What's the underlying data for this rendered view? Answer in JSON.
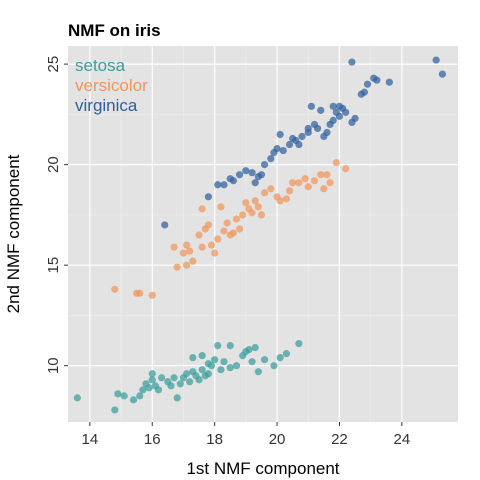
{
  "chart_data": {
    "type": "scatter",
    "title": "NMF on iris",
    "xlabel": "1st NMF component",
    "ylabel": "2nd NMF component",
    "xlim": [
      13.3,
      25.8
    ],
    "ylim": [
      7.2,
      25.9
    ],
    "xticks": [
      14,
      16,
      18,
      20,
      22,
      24
    ],
    "yticks": [
      10,
      15,
      20,
      25
    ],
    "grid": true,
    "legend_position": "top-left",
    "series": [
      {
        "name": "setosa",
        "color": "#3a9e9c",
        "points": [
          [
            13.6,
            8.4
          ],
          [
            14.8,
            7.8
          ],
          [
            14.9,
            8.6
          ],
          [
            15.1,
            8.5
          ],
          [
            15.4,
            8.3
          ],
          [
            15.6,
            8.5
          ],
          [
            15.7,
            8.8
          ],
          [
            15.8,
            9.1
          ],
          [
            15.9,
            8.9
          ],
          [
            16.0,
            9.3
          ],
          [
            16.1,
            9.0
          ],
          [
            16.2,
            8.8
          ],
          [
            16.3,
            9.4
          ],
          [
            16.0,
            9.6
          ],
          [
            16.5,
            9.2
          ],
          [
            16.6,
            9.0
          ],
          [
            16.8,
            8.4
          ],
          [
            16.9,
            9.1
          ],
          [
            17.0,
            9.4
          ],
          [
            17.1,
            9.6
          ],
          [
            17.2,
            9.2
          ],
          [
            17.3,
            9.7
          ],
          [
            17.4,
            9.5
          ],
          [
            17.5,
            9.3
          ],
          [
            17.6,
            9.8
          ],
          [
            17.7,
            9.5
          ],
          [
            17.8,
            9.6
          ],
          [
            17.9,
            10.0
          ],
          [
            18.0,
            10.3
          ],
          [
            18.2,
            9.8
          ],
          [
            18.3,
            10.2
          ],
          [
            18.5,
            9.9
          ],
          [
            18.7,
            10.0
          ],
          [
            18.9,
            10.5
          ],
          [
            19.0,
            10.7
          ],
          [
            19.2,
            10.2
          ],
          [
            19.4,
            9.7
          ],
          [
            19.6,
            10.3
          ],
          [
            19.9,
            10.0
          ],
          [
            20.1,
            10.4
          ],
          [
            20.3,
            10.6
          ],
          [
            17.3,
            10.4
          ],
          [
            17.6,
            10.5
          ],
          [
            18.1,
            11.0
          ],
          [
            18.5,
            11.0
          ],
          [
            19.1,
            10.8
          ],
          [
            19.3,
            10.9
          ],
          [
            20.7,
            11.1
          ],
          [
            16.7,
            9.4
          ],
          [
            17.8,
            10.1
          ]
        ]
      },
      {
        "name": "versicolor",
        "color": "#f0965a",
        "points": [
          [
            14.8,
            13.8
          ],
          [
            15.5,
            13.6
          ],
          [
            15.6,
            13.6
          ],
          [
            16.0,
            13.5
          ],
          [
            16.7,
            15.9
          ],
          [
            17.0,
            15.6
          ],
          [
            17.1,
            16.0
          ],
          [
            17.2,
            15.7
          ],
          [
            17.3,
            15.2
          ],
          [
            17.5,
            16.5
          ],
          [
            17.6,
            15.9
          ],
          [
            17.7,
            16.8
          ],
          [
            17.8,
            17.0
          ],
          [
            17.9,
            16.0
          ],
          [
            18.0,
            15.6
          ],
          [
            18.1,
            16.3
          ],
          [
            18.3,
            16.7
          ],
          [
            18.4,
            17.1
          ],
          [
            18.5,
            16.5
          ],
          [
            18.6,
            16.6
          ],
          [
            18.7,
            17.3
          ],
          [
            18.8,
            16.8
          ],
          [
            18.9,
            17.5
          ],
          [
            19.0,
            18.1
          ],
          [
            19.1,
            17.8
          ],
          [
            19.2,
            17.6
          ],
          [
            19.3,
            18.2
          ],
          [
            19.4,
            17.9
          ],
          [
            19.5,
            17.5
          ],
          [
            19.6,
            18.6
          ],
          [
            19.8,
            18.8
          ],
          [
            20.0,
            18.4
          ],
          [
            20.1,
            18.2
          ],
          [
            20.3,
            18.3
          ],
          [
            20.4,
            18.7
          ],
          [
            20.5,
            19.1
          ],
          [
            20.7,
            19.1
          ],
          [
            20.9,
            19.3
          ],
          [
            21.0,
            18.9
          ],
          [
            21.2,
            19.2
          ],
          [
            21.4,
            19.5
          ],
          [
            21.5,
            18.8
          ],
          [
            21.6,
            19.5
          ],
          [
            21.7,
            19.1
          ],
          [
            21.9,
            20.1
          ],
          [
            22.2,
            19.8
          ],
          [
            16.8,
            14.9
          ],
          [
            17.1,
            15.0
          ],
          [
            18.2,
            17.9
          ],
          [
            17.6,
            17.8
          ]
        ]
      },
      {
        "name": "virginica",
        "color": "#30609e",
        "points": [
          [
            16.4,
            17.0
          ],
          [
            17.8,
            18.4
          ],
          [
            18.3,
            19.0
          ],
          [
            18.5,
            19.3
          ],
          [
            18.8,
            19.5
          ],
          [
            19.0,
            19.7
          ],
          [
            19.2,
            19.6
          ],
          [
            19.4,
            19.4
          ],
          [
            19.6,
            20.0
          ],
          [
            19.8,
            20.3
          ],
          [
            20.0,
            20.8
          ],
          [
            20.2,
            20.7
          ],
          [
            20.4,
            21.0
          ],
          [
            20.6,
            21.2
          ],
          [
            20.8,
            21.4
          ],
          [
            21.0,
            21.6
          ],
          [
            21.2,
            22.0
          ],
          [
            21.3,
            21.8
          ],
          [
            21.5,
            21.4
          ],
          [
            21.6,
            21.6
          ],
          [
            21.8,
            22.2
          ],
          [
            21.9,
            22.6
          ],
          [
            22.0,
            22.4
          ],
          [
            22.1,
            22.8
          ],
          [
            22.2,
            22.6
          ],
          [
            22.4,
            22.1
          ],
          [
            22.5,
            22.3
          ],
          [
            22.7,
            23.5
          ],
          [
            22.9,
            24.0
          ],
          [
            23.1,
            24.3
          ],
          [
            23.2,
            24.2
          ],
          [
            23.6,
            24.1
          ],
          [
            25.1,
            25.2
          ],
          [
            25.3,
            24.5
          ],
          [
            22.4,
            25.1
          ],
          [
            21.0,
            21.8
          ],
          [
            20.5,
            21.3
          ],
          [
            19.9,
            20.6
          ],
          [
            21.7,
            22.0
          ],
          [
            18.6,
            19.2
          ],
          [
            19.3,
            19.1
          ],
          [
            20.7,
            21.0
          ],
          [
            21.1,
            22.9
          ],
          [
            21.4,
            22.7
          ],
          [
            22.0,
            22.9
          ],
          [
            19.5,
            19.5
          ],
          [
            18.1,
            19.0
          ],
          [
            20.1,
            21.5
          ],
          [
            21.8,
            22.9
          ],
          [
            22.8,
            23.6
          ]
        ]
      }
    ]
  }
}
